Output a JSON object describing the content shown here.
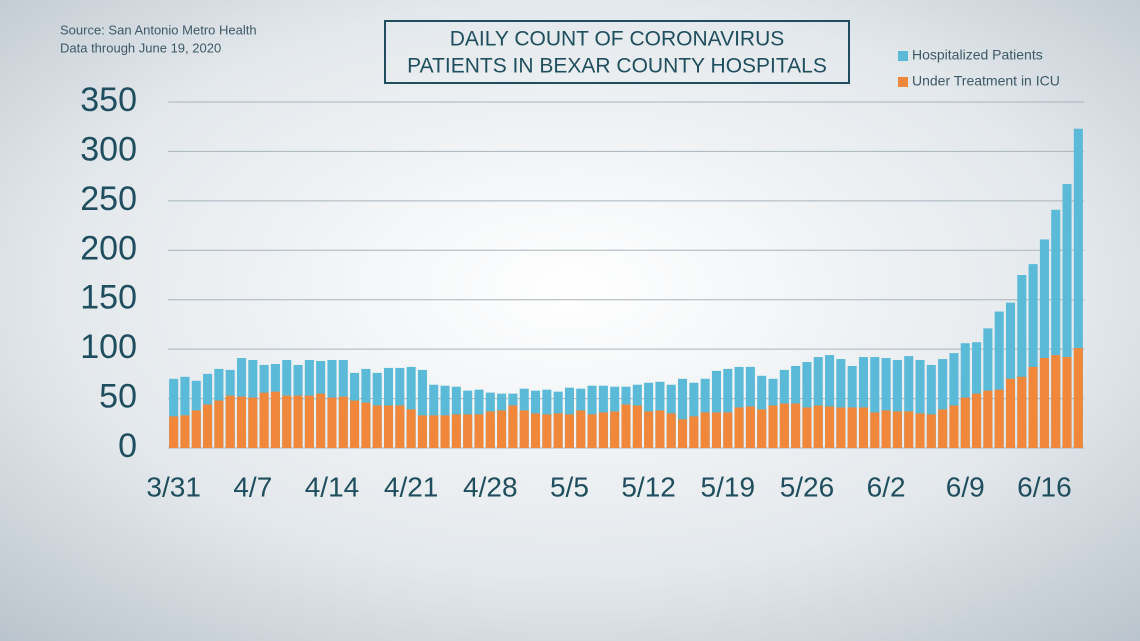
{
  "chart_data": {
    "type": "bar",
    "title_lines": [
      "DAILY COUNT OF CORONAVIRUS",
      "PATIENTS IN BEXAR COUNTY HOSPITALS"
    ],
    "source": "Source: San Antonio Metro Health",
    "note": "Data through June 19, 2020",
    "categories": [
      "3/31",
      null,
      null,
      null,
      null,
      null,
      null,
      "4/7",
      null,
      null,
      null,
      null,
      null,
      null,
      "4/14",
      null,
      null,
      null,
      null,
      null,
      null,
      "4/21",
      null,
      null,
      null,
      null,
      null,
      null,
      "4/28",
      null,
      null,
      null,
      null,
      null,
      null,
      "5/5",
      null,
      null,
      null,
      null,
      null,
      null,
      "5/12",
      null,
      null,
      null,
      null,
      null,
      null,
      "5/19",
      null,
      null,
      null,
      null,
      null,
      null,
      "5/26",
      null,
      null,
      null,
      null,
      null,
      null,
      "6/2",
      null,
      null,
      null,
      null,
      null,
      null,
      "6/9",
      null,
      null,
      null,
      null,
      null,
      null,
      "6/16",
      null,
      null,
      null
    ],
    "series": [
      {
        "name": "Hospitalized Patients",
        "color": "#5bbad8",
        "values": [
          70,
          72,
          68,
          75,
          80,
          79,
          91,
          89,
          84,
          85,
          89,
          84,
          89,
          88,
          89,
          89,
          76,
          80,
          76,
          81,
          81,
          82,
          79,
          64,
          63,
          62,
          58,
          59,
          56,
          55,
          55,
          60,
          58,
          59,
          57,
          61,
          60,
          63,
          63,
          62,
          62,
          64,
          66,
          67,
          64,
          70,
          66,
          70,
          78,
          80,
          82,
          82,
          73,
          70,
          79,
          83,
          87,
          92,
          94,
          90,
          83,
          92,
          92,
          91,
          89,
          93,
          89,
          84,
          90,
          96,
          106,
          107,
          121,
          138,
          147,
          175,
          186,
          211,
          241,
          267,
          323
        ]
      },
      {
        "name": "Under Treatment in ICU",
        "color": "#f0873a",
        "values": [
          32,
          33,
          38,
          44,
          48,
          53,
          52,
          51,
          56,
          57,
          53,
          53,
          53,
          55,
          51,
          52,
          48,
          46,
          43,
          43,
          43,
          39,
          33,
          33,
          33,
          34,
          34,
          34,
          37,
          38,
          43,
          38,
          35,
          34,
          35,
          34,
          38,
          34,
          36,
          37,
          44,
          43,
          37,
          38,
          35,
          29,
          32,
          36,
          36,
          36,
          41,
          42,
          39,
          43,
          45,
          45,
          41,
          43,
          42,
          41,
          41,
          41,
          36,
          38,
          37,
          37,
          35,
          34,
          39,
          43,
          51,
          55,
          58,
          59,
          70,
          72,
          82,
          91,
          94,
          92,
          101
        ]
      }
    ],
    "ylim": [
      0,
      350
    ],
    "yticks": [
      0,
      50,
      100,
      150,
      200,
      250,
      300,
      350
    ],
    "grid": true
  }
}
